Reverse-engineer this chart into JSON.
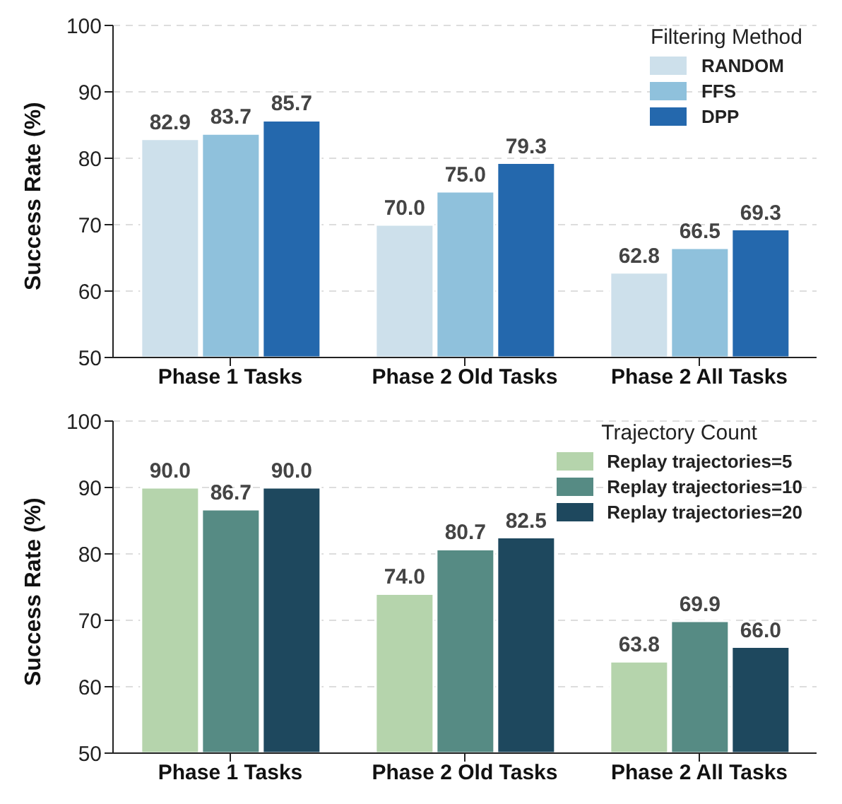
{
  "chart_data": [
    {
      "type": "bar",
      "ylabel": "Success Rate (%)",
      "legend_title": "Filtering Method",
      "categories": [
        "Phase 1 Tasks",
        "Phase 2 Old Tasks",
        "Phase 2 All Tasks"
      ],
      "series": [
        {
          "name": "RANDOM",
          "color": "#cde0eb",
          "values": [
            82.9,
            70.0,
            62.8
          ],
          "value_labels": [
            "82.9",
            "70.0",
            "62.8"
          ]
        },
        {
          "name": "FFS",
          "color": "#8fc1dc",
          "values": [
            83.7,
            75.0,
            66.5
          ],
          "value_labels": [
            "83.7",
            "75.0",
            "66.5"
          ]
        },
        {
          "name": "DPP",
          "color": "#2468ad",
          "values": [
            85.7,
            79.3,
            69.3
          ],
          "value_labels": [
            "85.7",
            "79.3",
            "69.3"
          ]
        }
      ],
      "ylim": [
        50,
        100
      ],
      "yticks": [
        50,
        60,
        70,
        80,
        90,
        100
      ],
      "grid": "y",
      "legend": "top right"
    },
    {
      "type": "bar",
      "ylabel": "Success Rate (%)",
      "legend_title": "Trajectory Count",
      "categories": [
        "Phase 1 Tasks",
        "Phase 2 Old Tasks",
        "Phase 2 All Tasks"
      ],
      "series": [
        {
          "name": "Replay trajectories=5",
          "color": "#b5d4ac",
          "values": [
            90.0,
            74.0,
            63.8
          ],
          "value_labels": [
            "90.0",
            "74.0",
            "63.8"
          ]
        },
        {
          "name": "Replay trajectories=10",
          "color": "#568b84",
          "values": [
            86.7,
            80.7,
            69.9
          ],
          "value_labels": [
            "86.7",
            "80.7",
            "69.9"
          ]
        },
        {
          "name": "Replay trajectories=20",
          "color": "#1e485e",
          "values": [
            90.0,
            82.5,
            66.0
          ],
          "value_labels": [
            "90.0",
            "82.5",
            "66.0"
          ]
        }
      ],
      "ylim": [
        50,
        100
      ],
      "yticks": [
        50,
        60,
        70,
        80,
        90,
        100
      ],
      "grid": "y",
      "legend": "top right"
    }
  ]
}
